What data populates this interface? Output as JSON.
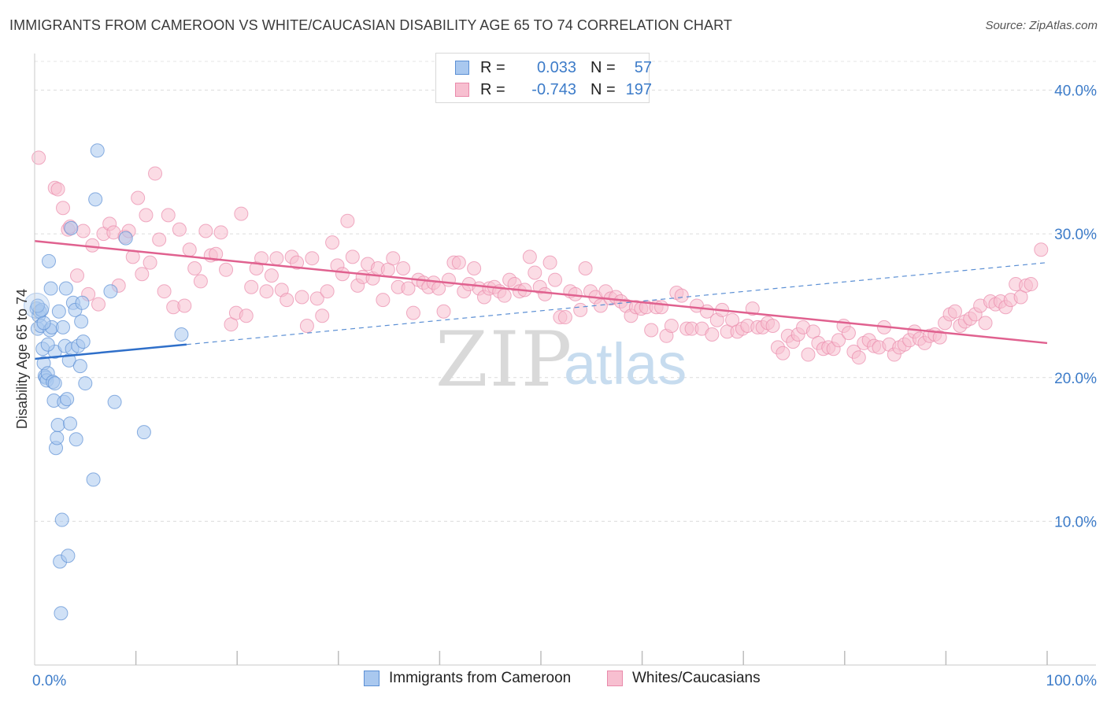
{
  "title": "IMMIGRANTS FROM CAMEROON VS WHITE/CAUCASIAN DISABILITY AGE 65 TO 74 CORRELATION CHART",
  "source": "Source: ZipAtlas.com",
  "watermark": {
    "zip": "ZIP",
    "atlas": "atlas"
  },
  "legend": {
    "rows": [
      {
        "r_label": "R =",
        "r_value": "0.033",
        "n_label": "N =",
        "n_value": "57",
        "color": "#a9c8ef",
        "stroke": "#5b8fd4"
      },
      {
        "r_label": "R =",
        "r_value": "-0.743",
        "n_label": "N =",
        "n_value": "197",
        "color": "#f7bfd0",
        "stroke": "#e98aab"
      }
    ]
  },
  "bottom_legend": [
    {
      "label": "Immigrants from Cameroon",
      "color": "#a9c8ef",
      "stroke": "#5b8fd4"
    },
    {
      "label": "Whites/Caucasians",
      "color": "#f7bfd0",
      "stroke": "#e98aab"
    }
  ],
  "chart_data": {
    "type": "scatter",
    "title": "IMMIGRANTS FROM CAMEROON VS WHITE/CAUCASIAN DISABILITY AGE 65 TO 74 CORRELATION CHART",
    "xlabel": "",
    "ylabel": "Disability Age 65 to 74",
    "xlim": [
      0,
      100
    ],
    "ylim": [
      0,
      42
    ],
    "x_ticks": [
      {
        "v": 0,
        "label": "0.0%"
      },
      {
        "v": 100,
        "label": "100.0%"
      }
    ],
    "y_ticks": [
      {
        "v": 10,
        "label": "10.0%"
      },
      {
        "v": 20,
        "label": "20.0%"
      },
      {
        "v": 30,
        "label": "30.0%"
      },
      {
        "v": 40,
        "label": "40.0%"
      }
    ],
    "grid": true,
    "legend_position": "top-center",
    "series": [
      {
        "name": "Immigrants from Cameroon",
        "color": "#a9c8ef",
        "stroke": "#5b8fd4",
        "trend": {
          "x0": 0,
          "y0": 21.3,
          "x1": 15,
          "y1": 22.3,
          "x_ext": 100,
          "y_ext": 28.0
        },
        "points": [
          [
            0.2,
            24.8
          ],
          [
            0.3,
            23.4
          ],
          [
            0.4,
            24.3
          ],
          [
            0.5,
            24.6
          ],
          [
            0.6,
            23.6
          ],
          [
            0.7,
            24.7
          ],
          [
            0.8,
            22.0
          ],
          [
            0.9,
            21.0
          ],
          [
            1.0,
            20.1
          ],
          [
            1.1,
            20.0
          ],
          [
            1.2,
            19.8
          ],
          [
            1.3,
            20.3
          ],
          [
            1.4,
            28.1
          ],
          [
            1.5,
            23.3
          ],
          [
            1.6,
            26.2
          ],
          [
            1.7,
            23.5
          ],
          [
            1.8,
            19.7
          ],
          [
            1.9,
            18.4
          ],
          [
            2.0,
            21.8
          ],
          [
            2.1,
            15.1
          ],
          [
            2.2,
            15.8
          ],
          [
            2.3,
            16.7
          ],
          [
            2.4,
            24.6
          ],
          [
            2.5,
            7.2
          ],
          [
            2.6,
            3.6
          ],
          [
            2.7,
            10.1
          ],
          [
            2.8,
            23.5
          ],
          [
            2.9,
            18.3
          ],
          [
            3.0,
            22.2
          ],
          [
            3.1,
            26.2
          ],
          [
            3.2,
            18.5
          ],
          [
            3.3,
            7.6
          ],
          [
            3.4,
            21.2
          ],
          [
            3.5,
            16.8
          ],
          [
            3.6,
            30.4
          ],
          [
            3.7,
            22.0
          ],
          [
            3.8,
            25.2
          ],
          [
            4.0,
            24.7
          ],
          [
            4.1,
            15.7
          ],
          [
            4.3,
            22.2
          ],
          [
            4.5,
            20.8
          ],
          [
            4.6,
            23.9
          ],
          [
            4.7,
            25.2
          ],
          [
            4.8,
            22.5
          ],
          [
            5.0,
            19.6
          ],
          [
            6.0,
            32.4
          ],
          [
            5.8,
            12.9
          ],
          [
            6.2,
            35.8
          ],
          [
            7.5,
            26.0
          ],
          [
            7.9,
            18.3
          ],
          [
            9.0,
            29.7
          ],
          [
            10.8,
            16.2
          ],
          [
            14.5,
            23.0
          ],
          [
            0.3,
            25.0
          ],
          [
            0.9,
            23.8
          ],
          [
            1.3,
            22.3
          ],
          [
            2.0,
            19.6
          ]
        ]
      },
      {
        "name": "Whites/Caucasians",
        "color": "#f7bfd0",
        "stroke": "#e98aab",
        "trend": {
          "x0": 0,
          "y0": 29.5,
          "x1": 100,
          "y1": 22.4
        },
        "points": [
          [
            0.4,
            35.3
          ],
          [
            2.0,
            33.2
          ],
          [
            2.3,
            33.1
          ],
          [
            2.8,
            31.8
          ],
          [
            3.3,
            30.3
          ],
          [
            3.5,
            30.5
          ],
          [
            4.2,
            27.1
          ],
          [
            4.8,
            30.2
          ],
          [
            5.3,
            25.8
          ],
          [
            5.7,
            29.2
          ],
          [
            6.3,
            25.1
          ],
          [
            6.8,
            30.0
          ],
          [
            7.4,
            30.7
          ],
          [
            7.8,
            30.1
          ],
          [
            8.3,
            26.4
          ],
          [
            8.9,
            29.8
          ],
          [
            9.3,
            30.2
          ],
          [
            9.7,
            28.4
          ],
          [
            10.2,
            32.5
          ],
          [
            10.6,
            27.2
          ],
          [
            11.0,
            31.3
          ],
          [
            11.4,
            28.0
          ],
          [
            11.9,
            34.2
          ],
          [
            12.3,
            29.6
          ],
          [
            12.8,
            26.0
          ],
          [
            13.2,
            31.3
          ],
          [
            13.7,
            24.9
          ],
          [
            14.3,
            30.3
          ],
          [
            14.8,
            25.0
          ],
          [
            15.3,
            28.9
          ],
          [
            15.8,
            27.6
          ],
          [
            16.4,
            26.7
          ],
          [
            16.9,
            30.2
          ],
          [
            17.4,
            28.5
          ],
          [
            17.9,
            28.6
          ],
          [
            18.4,
            30.1
          ],
          [
            18.9,
            27.5
          ],
          [
            19.4,
            23.7
          ],
          [
            19.9,
            24.5
          ],
          [
            20.4,
            31.4
          ],
          [
            20.9,
            24.3
          ],
          [
            21.4,
            26.3
          ],
          [
            21.9,
            27.6
          ],
          [
            22.4,
            28.3
          ],
          [
            22.9,
            26.0
          ],
          [
            23.4,
            27.1
          ],
          [
            23.9,
            28.3
          ],
          [
            24.4,
            26.1
          ],
          [
            24.9,
            25.4
          ],
          [
            25.4,
            28.4
          ],
          [
            25.9,
            28.0
          ],
          [
            26.4,
            25.6
          ],
          [
            26.9,
            23.6
          ],
          [
            27.4,
            28.3
          ],
          [
            27.9,
            25.5
          ],
          [
            28.4,
            24.3
          ],
          [
            28.9,
            26.0
          ],
          [
            29.4,
            29.4
          ],
          [
            29.9,
            27.8
          ],
          [
            30.4,
            27.2
          ],
          [
            30.9,
            30.9
          ],
          [
            31.4,
            28.4
          ],
          [
            31.9,
            26.4
          ],
          [
            32.4,
            27.0
          ],
          [
            32.9,
            27.9
          ],
          [
            33.4,
            26.9
          ],
          [
            33.9,
            27.6
          ],
          [
            34.4,
            25.4
          ],
          [
            34.9,
            27.5
          ],
          [
            35.4,
            28.3
          ],
          [
            35.9,
            26.3
          ],
          [
            36.4,
            27.6
          ],
          [
            36.9,
            26.2
          ],
          [
            37.4,
            24.5
          ],
          [
            37.9,
            26.8
          ],
          [
            38.4,
            26.6
          ],
          [
            38.9,
            26.3
          ],
          [
            39.4,
            26.6
          ],
          [
            39.9,
            26.2
          ],
          [
            40.4,
            24.6
          ],
          [
            40.9,
            26.8
          ],
          [
            41.4,
            28.0
          ],
          [
            41.9,
            28.0
          ],
          [
            42.4,
            26.0
          ],
          [
            42.9,
            26.5
          ],
          [
            43.4,
            27.6
          ],
          [
            43.9,
            26.2
          ],
          [
            44.4,
            25.6
          ],
          [
            44.9,
            26.2
          ],
          [
            45.4,
            26.3
          ],
          [
            45.9,
            26.0
          ],
          [
            46.4,
            25.7
          ],
          [
            46.9,
            26.8
          ],
          [
            47.4,
            26.5
          ],
          [
            47.9,
            26.0
          ],
          [
            48.4,
            26.1
          ],
          [
            48.9,
            28.4
          ],
          [
            49.4,
            27.3
          ],
          [
            49.9,
            26.3
          ],
          [
            50.4,
            25.8
          ],
          [
            50.9,
            28.0
          ],
          [
            51.4,
            26.8
          ],
          [
            51.9,
            24.2
          ],
          [
            52.4,
            24.2
          ],
          [
            52.9,
            26.0
          ],
          [
            53.4,
            25.8
          ],
          [
            53.9,
            24.7
          ],
          [
            54.4,
            27.6
          ],
          [
            54.9,
            26.0
          ],
          [
            55.4,
            25.6
          ],
          [
            55.9,
            25.0
          ],
          [
            56.4,
            26.0
          ],
          [
            56.9,
            25.5
          ],
          [
            57.4,
            25.6
          ],
          [
            57.9,
            25.3
          ],
          [
            58.4,
            25.0
          ],
          [
            58.9,
            24.3
          ],
          [
            59.4,
            24.9
          ],
          [
            59.9,
            24.8
          ],
          [
            60.4,
            24.9
          ],
          [
            60.9,
            23.3
          ],
          [
            61.4,
            24.9
          ],
          [
            61.9,
            24.9
          ],
          [
            62.4,
            22.9
          ],
          [
            62.9,
            23.6
          ],
          [
            63.4,
            25.9
          ],
          [
            63.9,
            25.7
          ],
          [
            64.4,
            23.4
          ],
          [
            64.9,
            23.4
          ],
          [
            65.4,
            25.0
          ],
          [
            65.9,
            23.4
          ],
          [
            66.4,
            24.6
          ],
          [
            66.9,
            23.0
          ],
          [
            67.4,
            24.0
          ],
          [
            67.9,
            24.7
          ],
          [
            68.4,
            23.2
          ],
          [
            68.9,
            24.0
          ],
          [
            69.4,
            23.2
          ],
          [
            69.9,
            23.4
          ],
          [
            70.4,
            23.6
          ],
          [
            70.9,
            24.8
          ],
          [
            71.4,
            23.5
          ],
          [
            71.9,
            23.5
          ],
          [
            72.4,
            23.8
          ],
          [
            72.9,
            23.6
          ],
          [
            73.4,
            22.1
          ],
          [
            73.9,
            21.7
          ],
          [
            74.4,
            22.9
          ],
          [
            74.9,
            22.5
          ],
          [
            75.4,
            23.0
          ],
          [
            75.9,
            23.5
          ],
          [
            76.4,
            21.6
          ],
          [
            76.9,
            23.2
          ],
          [
            77.4,
            22.4
          ],
          [
            77.9,
            22.0
          ],
          [
            78.4,
            22.1
          ],
          [
            78.9,
            22.0
          ],
          [
            79.4,
            22.6
          ],
          [
            79.9,
            23.6
          ],
          [
            80.4,
            23.1
          ],
          [
            80.9,
            21.8
          ],
          [
            81.4,
            21.4
          ],
          [
            81.9,
            22.4
          ],
          [
            82.4,
            22.6
          ],
          [
            82.9,
            22.2
          ],
          [
            83.4,
            22.1
          ],
          [
            83.9,
            23.5
          ],
          [
            84.4,
            22.3
          ],
          [
            84.9,
            21.6
          ],
          [
            85.4,
            22.1
          ],
          [
            85.9,
            22.3
          ],
          [
            86.4,
            22.6
          ],
          [
            86.9,
            23.2
          ],
          [
            87.4,
            22.7
          ],
          [
            87.9,
            22.4
          ],
          [
            88.4,
            22.9
          ],
          [
            88.9,
            23.0
          ],
          [
            89.4,
            22.8
          ],
          [
            89.9,
            23.8
          ],
          [
            90.4,
            24.4
          ],
          [
            90.9,
            24.6
          ],
          [
            91.4,
            23.6
          ],
          [
            91.9,
            23.9
          ],
          [
            92.4,
            24.1
          ],
          [
            92.9,
            24.4
          ],
          [
            93.4,
            25.0
          ],
          [
            93.9,
            23.8
          ],
          [
            94.4,
            25.3
          ],
          [
            94.9,
            25.1
          ],
          [
            95.4,
            25.3
          ],
          [
            95.9,
            24.9
          ],
          [
            96.4,
            25.4
          ],
          [
            96.9,
            26.5
          ],
          [
            97.4,
            25.6
          ],
          [
            97.9,
            26.4
          ],
          [
            98.4,
            26.5
          ],
          [
            99.4,
            28.9
          ]
        ]
      }
    ]
  }
}
